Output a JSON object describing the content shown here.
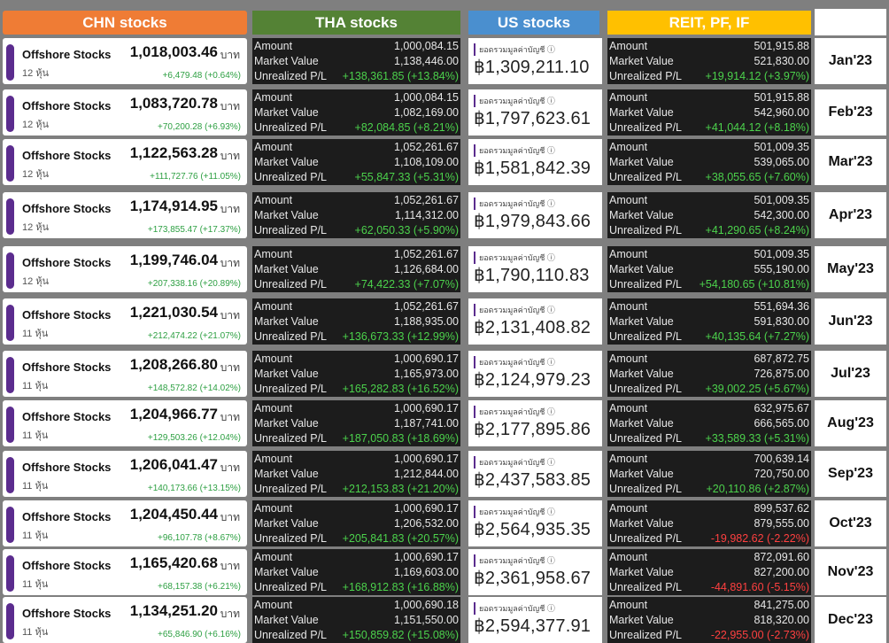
{
  "headers": {
    "chn": "CHN stocks",
    "tha": "THA stocks",
    "us": "US stocks",
    "reit": "REIT, PF, IF"
  },
  "labels": {
    "amount": "Amount",
    "market_value": "Market Value",
    "unrealized": "Unrealized P/L",
    "offshore": "Offshore Stocks",
    "baht": "บาท",
    "us_label": "ยอดรวมมูลค่าบัญชี ⓘ"
  },
  "rows": [
    {
      "month": "Jan'23",
      "chn": {
        "value": "1,018,003.46",
        "count": "12 หุ้น",
        "pl": "+6,479.48 (+0.64%)"
      },
      "tha": {
        "amount": "1,000,084.15",
        "mv": "1,138,446.00",
        "pl": "+138,361.85 (+13.84%)",
        "pl_sign": "pos"
      },
      "us": {
        "value": "฿1,309,211.10"
      },
      "reit": {
        "amount": "501,915.88",
        "mv": "521,830.00",
        "pl": "+19,914.12 (+3.97%)",
        "pl_sign": "pos"
      }
    },
    {
      "month": "Feb'23",
      "chn": {
        "value": "1,083,720.78",
        "count": "12 หุ้น",
        "pl": "+70,200.28 (+6.93%)"
      },
      "tha": {
        "amount": "1,000,084.15",
        "mv": "1,082,169.00",
        "pl": "+82,084.85 (+8.21%)",
        "pl_sign": "pos"
      },
      "us": {
        "value": "฿1,797,623.61"
      },
      "reit": {
        "amount": "501,915.88",
        "mv": "542,960.00",
        "pl": "+41,044.12 (+8.18%)",
        "pl_sign": "pos"
      }
    },
    {
      "month": "Mar'23",
      "chn": {
        "value": "1,122,563.28",
        "count": "12 หุ้น",
        "pl": "+111,727.76 (+11.05%)"
      },
      "tha": {
        "amount": "1,052,261.67",
        "mv": "1,108,109.00",
        "pl": "+55,847.33 (+5.31%)",
        "pl_sign": "pos"
      },
      "us": {
        "value": "฿1,581,842.39"
      },
      "reit": {
        "amount": "501,009.35",
        "mv": "539,065.00",
        "pl": "+38,055.65 (+7.60%)",
        "pl_sign": "pos"
      }
    },
    {
      "month": "Apr'23",
      "chn": {
        "value": "1,174,914.95",
        "count": "12 หุ้น",
        "pl": "+173,855.47 (+17.37%)"
      },
      "tha": {
        "amount": "1,052,261.67",
        "mv": "1,114,312.00",
        "pl": "+62,050.33 (+5.90%)",
        "pl_sign": "pos"
      },
      "us": {
        "value": "฿1,979,843.66"
      },
      "reit": {
        "amount": "501,009.35",
        "mv": "542,300.00",
        "pl": "+41,290.65 (+8.24%)",
        "pl_sign": "pos"
      }
    },
    {
      "month": "May'23",
      "chn": {
        "value": "1,199,746.04",
        "count": "12 หุ้น",
        "pl": "+207,338.16 (+20.89%)"
      },
      "tha": {
        "amount": "1,052,261.67",
        "mv": "1,126,684.00",
        "pl": "+74,422.33 (+7.07%)",
        "pl_sign": "pos"
      },
      "us": {
        "value": "฿1,790,110.83"
      },
      "reit": {
        "amount": "501,009.35",
        "mv": "555,190.00",
        "pl": "+54,180.65 (+10.81%)",
        "pl_sign": "pos"
      }
    },
    {
      "month": "Jun'23",
      "chn": {
        "value": "1,221,030.54",
        "count": "11 หุ้น",
        "pl": "+212,474.22 (+21.07%)"
      },
      "tha": {
        "amount": "1,052,261.67",
        "mv": "1,188,935.00",
        "pl": "+136,673.33 (+12.99%)",
        "pl_sign": "pos"
      },
      "us": {
        "value": "฿2,131,408.82"
      },
      "reit": {
        "amount": "551,694.36",
        "mv": "591,830.00",
        "pl": "+40,135.64 (+7.27%)",
        "pl_sign": "pos"
      }
    },
    {
      "month": "Jul'23",
      "chn": {
        "value": "1,208,266.80",
        "count": "11 หุ้น",
        "pl": "+148,572.82 (+14.02%)"
      },
      "tha": {
        "amount": "1,000,690.17",
        "mv": "1,165,973.00",
        "pl": "+165,282.83 (+16.52%)",
        "pl_sign": "pos"
      },
      "us": {
        "value": "฿2,124,979.23"
      },
      "reit": {
        "amount": "687,872.75",
        "mv": "726,875.00",
        "pl": "+39,002.25 (+5.67%)",
        "pl_sign": "pos"
      }
    },
    {
      "month": "Aug'23",
      "chn": {
        "value": "1,204,966.77",
        "count": "11 หุ้น",
        "pl": "+129,503.26 (+12.04%)"
      },
      "tha": {
        "amount": "1,000,690.17",
        "mv": "1,187,741.00",
        "pl": "+187,050.83 (+18.69%)",
        "pl_sign": "pos"
      },
      "us": {
        "value": "฿2,177,895.86"
      },
      "reit": {
        "amount": "632,975.67",
        "mv": "666,565.00",
        "pl": "+33,589.33 (+5.31%)",
        "pl_sign": "pos"
      }
    },
    {
      "month": "Sep'23",
      "chn": {
        "value": "1,206,041.47",
        "count": "11 หุ้น",
        "pl": "+140,173.66 (+13.15%)"
      },
      "tha": {
        "amount": "1,000,690.17",
        "mv": "1,212,844.00",
        "pl": "+212,153.83 (+21.20%)",
        "pl_sign": "pos"
      },
      "us": {
        "value": "฿2,437,583.85"
      },
      "reit": {
        "amount": "700,639.14",
        "mv": "720,750.00",
        "pl": "+20,110.86 (+2.87%)",
        "pl_sign": "pos"
      }
    },
    {
      "month": "Oct'23",
      "chn": {
        "value": "1,204,450.44",
        "count": "11 หุ้น",
        "pl": "+96,107.78 (+8.67%)"
      },
      "tha": {
        "amount": "1,000,690.17",
        "mv": "1,206,532.00",
        "pl": "+205,841.83 (+20.57%)",
        "pl_sign": "pos"
      },
      "us": {
        "value": "฿2,564,935.35"
      },
      "reit": {
        "amount": "899,537.62",
        "mv": "879,555.00",
        "pl": "-19,982.62 (-2.22%)",
        "pl_sign": "neg"
      }
    },
    {
      "month": "Nov'23",
      "chn": {
        "value": "1,165,420.68",
        "count": "11 หุ้น",
        "pl": "+68,157.38 (+6.21%)"
      },
      "tha": {
        "amount": "1,000,690.17",
        "mv": "1,169,603.00",
        "pl": "+168,912.83 (+16.88%)",
        "pl_sign": "pos"
      },
      "us": {
        "value": "฿2,361,958.67"
      },
      "reit": {
        "amount": "872,091.60",
        "mv": "827,200.00",
        "pl": "-44,891.60 (-5.15%)",
        "pl_sign": "neg"
      }
    },
    {
      "month": "Dec'23",
      "chn": {
        "value": "1,134,251.20",
        "count": "11 หุ้น",
        "pl": "+65,846.90 (+6.16%)"
      },
      "tha": {
        "amount": "1,000,690.18",
        "mv": "1,151,550.00",
        "pl": "+150,859.82 (+15.08%)",
        "pl_sign": "pos"
      },
      "us": {
        "value": "฿2,594,377.91"
      },
      "reit": {
        "amount": "841,275.00",
        "mv": "818,320.00",
        "pl": "-22,955.00 (-2.73%)",
        "pl_sign": "neg"
      }
    }
  ]
}
